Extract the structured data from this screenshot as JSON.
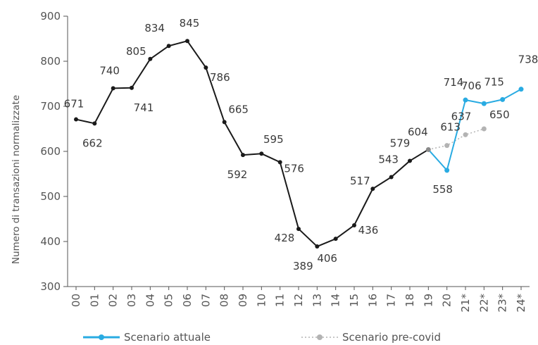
{
  "chart_data": {
    "type": "line",
    "ylabel": "Numero di transazioni normalizzate",
    "xlabel": "",
    "ylim": [
      300,
      900
    ],
    "yticks": [
      300,
      400,
      500,
      600,
      700,
      800,
      900
    ],
    "categories": [
      "00",
      "01",
      "02",
      "03",
      "04",
      "05",
      "06",
      "07",
      "08",
      "09",
      "10",
      "11",
      "12",
      "13",
      "14",
      "15",
      "16",
      "17",
      "18",
      "19",
      "20",
      "21*",
      "22*",
      "23*",
      "24*"
    ],
    "grid": false,
    "legend_position": "bottom",
    "series": [
      {
        "name": "",
        "color": "#1a1a1a",
        "values": [
          671,
          662,
          740,
          741,
          805,
          834,
          845,
          786,
          665,
          592,
          595,
          576,
          428,
          389,
          406,
          436,
          517,
          543,
          579,
          604,
          null,
          null,
          null,
          null,
          null
        ]
      },
      {
        "name": "Scenario attuale",
        "color": "#29abe2",
        "values": [
          null,
          null,
          null,
          null,
          null,
          null,
          null,
          null,
          null,
          null,
          null,
          null,
          null,
          null,
          null,
          null,
          null,
          null,
          null,
          604,
          558,
          714,
          706,
          715,
          738
        ]
      },
      {
        "name": "Scenario pre-covid",
        "color": "#b3b3b3",
        "values": [
          null,
          null,
          null,
          null,
          null,
          null,
          null,
          null,
          null,
          null,
          null,
          null,
          null,
          null,
          null,
          null,
          null,
          null,
          null,
          604,
          613,
          637,
          650,
          null,
          null
        ]
      }
    ],
    "data_labels": [
      {
        "text": "671",
        "series": 0,
        "index": 0
      },
      {
        "text": "662",
        "series": 0,
        "index": 1
      },
      {
        "text": "740",
        "series": 0,
        "index": 2
      },
      {
        "text": "741",
        "series": 0,
        "index": 3
      },
      {
        "text": "805",
        "series": 0,
        "index": 4
      },
      {
        "text": "834",
        "series": 0,
        "index": 5
      },
      {
        "text": "845",
        "series": 0,
        "index": 6
      },
      {
        "text": "786",
        "series": 0,
        "index": 7
      },
      {
        "text": "665",
        "series": 0,
        "index": 8
      },
      {
        "text": "592",
        "series": 0,
        "index": 9
      },
      {
        "text": "595",
        "series": 0,
        "index": 10
      },
      {
        "text": "576",
        "series": 0,
        "index": 11
      },
      {
        "text": "428",
        "series": 0,
        "index": 12
      },
      {
        "text": "389",
        "series": 0,
        "index": 13
      },
      {
        "text": "406",
        "series": 0,
        "index": 14
      },
      {
        "text": "436",
        "series": 0,
        "index": 15
      },
      {
        "text": "517",
        "series": 0,
        "index": 16
      },
      {
        "text": "543",
        "series": 0,
        "index": 17
      },
      {
        "text": "579",
        "series": 0,
        "index": 18
      },
      {
        "text": "604",
        "series": 0,
        "index": 19
      },
      {
        "text": "613",
        "series": 2,
        "index": 20
      },
      {
        "text": "558",
        "series": 1,
        "index": 20
      },
      {
        "text": "714",
        "series": 1,
        "index": 21
      },
      {
        "text": "637",
        "series": 2,
        "index": 21
      },
      {
        "text": "706",
        "series": 1,
        "index": 22
      },
      {
        "text": "650",
        "series": 2,
        "index": 22
      },
      {
        "text": "715",
        "series": 1,
        "index": 23
      },
      {
        "text": "738",
        "series": 1,
        "index": 24
      }
    ]
  }
}
